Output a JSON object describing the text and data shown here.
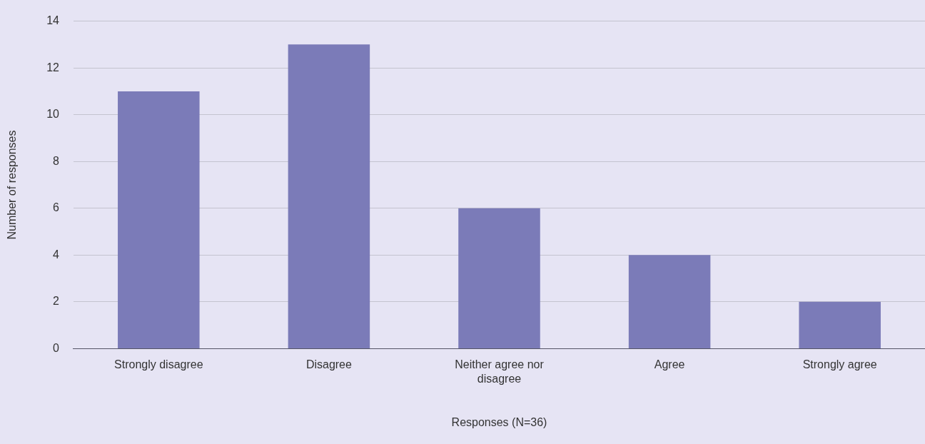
{
  "chart_data": {
    "type": "bar",
    "xlabel": "Responses (N=36)",
    "ylabel": "Number of responses",
    "categories": [
      "Strongly disagree",
      "Disagree",
      "Neither agree nor disagree",
      "Agree",
      "Strongly agree"
    ],
    "values": [
      11,
      13,
      6,
      4,
      2
    ],
    "color": "#7b7bb8",
    "ylim": [
      0,
      14
    ],
    "yticks": [
      0,
      2,
      4,
      6,
      8,
      10,
      12,
      14
    ],
    "grid": "y",
    "legend": false
  }
}
